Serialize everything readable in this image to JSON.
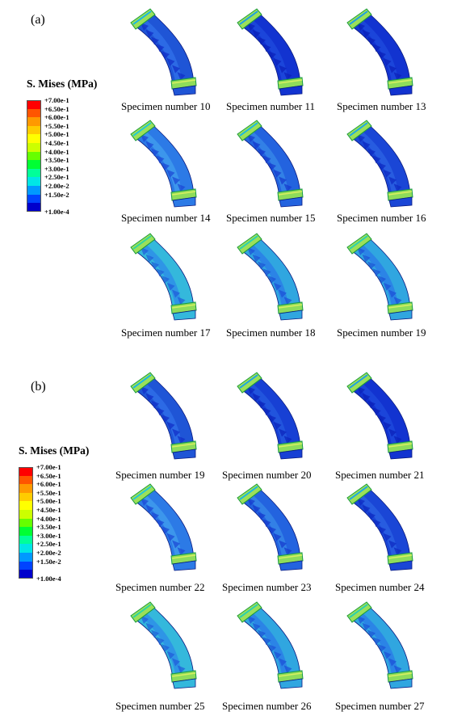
{
  "panels": [
    {
      "label": "(a)",
      "legend_title": "S. Mises (MPa)",
      "legend_ticks": [
        "+7.00e-1",
        "+6.50e-1",
        "+6.00e-1",
        "+5.50e-1",
        "+5.00e-1",
        "+4.50e-1",
        "+4.00e-1",
        "+3.50e-1",
        "+3.00e-1",
        "+2.50e-1",
        "+2.00e-2",
        "+1.50e-2",
        "+1.00e-4"
      ],
      "specimens": [
        {
          "caption": "Specimen number 10",
          "body_color": "#1f55d6",
          "shade_color": "#2f6fe8",
          "pattern_color": "#0f2cc6",
          "edge_color": "#18b6e6"
        },
        {
          "caption": "Specimen number 11",
          "body_color": "#1233d0",
          "shade_color": "#1d49dc",
          "pattern_color": "#0a1fb8",
          "edge_color": "#1c9ee6"
        },
        {
          "caption": "Specimen number 13",
          "body_color": "#1233d0",
          "shade_color": "#1d49dc",
          "pattern_color": "#0a1fb8",
          "edge_color": "#1c9ee6"
        },
        {
          "caption": "Specimen number 14",
          "body_color": "#2c7ae6",
          "shade_color": "#3f9bec",
          "pattern_color": "#1a44d4",
          "edge_color": "#20c8d8"
        },
        {
          "caption": "Specimen number 15",
          "body_color": "#2363df",
          "shade_color": "#3585e8",
          "pattern_color": "#1438cc",
          "edge_color": "#1ab8e0"
        },
        {
          "caption": "Specimen number 16",
          "body_color": "#1a46d6",
          "shade_color": "#2a60e2",
          "pattern_color": "#0d28c0",
          "edge_color": "#1ca8e4"
        },
        {
          "caption": "Specimen number 17",
          "body_color": "#34b8dc",
          "shade_color": "#2e8ee8",
          "pattern_color": "#1f5ad8",
          "edge_color": "#2ed6a0"
        },
        {
          "caption": "Specimen number 18",
          "body_color": "#30a6e0",
          "shade_color": "#2a7ee6",
          "pattern_color": "#1b4ed6",
          "edge_color": "#2ad0b0"
        },
        {
          "caption": "Specimen number 19",
          "body_color": "#30a6e0",
          "shade_color": "#2a7ee6",
          "pattern_color": "#1b4ed6",
          "edge_color": "#2ad0b0"
        }
      ]
    },
    {
      "label": "(b)",
      "legend_title": "S. Mises (MPa)",
      "legend_ticks": [
        "+7.00e-1",
        "+6.50e-1",
        "+6.00e-1",
        "+5.50e-1",
        "+5.00e-1",
        "+4.50e-1",
        "+4.00e-1",
        "+3.50e-1",
        "+3.00e-1",
        "+2.50e-1",
        "+2.00e-2",
        "+1.50e-2",
        "+1.00e-4"
      ],
      "specimens": [
        {
          "caption": "Specimen number 19",
          "body_color": "#1f55d6",
          "shade_color": "#2f6fe8",
          "pattern_color": "#0f2cc6",
          "edge_color": "#18b6e6"
        },
        {
          "caption": "Specimen number 20",
          "body_color": "#1740d4",
          "shade_color": "#2358de",
          "pattern_color": "#0b22ba",
          "edge_color": "#1ca4e4"
        },
        {
          "caption": "Specimen number 21",
          "body_color": "#1233d0",
          "shade_color": "#1d49dc",
          "pattern_color": "#0a1fb8",
          "edge_color": "#1c9ee6"
        },
        {
          "caption": "Specimen number 22",
          "body_color": "#2c7ae6",
          "shade_color": "#3f9bec",
          "pattern_color": "#1a44d4",
          "edge_color": "#20c8d8"
        },
        {
          "caption": "Specimen number 23",
          "body_color": "#2363df",
          "shade_color": "#3585e8",
          "pattern_color": "#1438cc",
          "edge_color": "#1ab8e0"
        },
        {
          "caption": "Specimen number 24",
          "body_color": "#1a46d6",
          "shade_color": "#2a60e2",
          "pattern_color": "#0d28c0",
          "edge_color": "#1ca8e4"
        },
        {
          "caption": "Specimen number 25",
          "body_color": "#34b8dc",
          "shade_color": "#2e8ee8",
          "pattern_color": "#1f5ad8",
          "edge_color": "#2ed6a0"
        },
        {
          "caption": "Specimen number 26",
          "body_color": "#30a6e0",
          "shade_color": "#2a7ee6",
          "pattern_color": "#1b4ed6",
          "edge_color": "#2ad0b0"
        },
        {
          "caption": "Specimen number 27",
          "body_color": "#30a6e0",
          "shade_color": "#2a7ee6",
          "pattern_color": "#1b4ed6",
          "edge_color": "#2ad0b0"
        }
      ]
    }
  ],
  "colorbar_colors": [
    "#ff0000",
    "#ff5500",
    "#ff9900",
    "#ffcc00",
    "#ffff00",
    "#ccff00",
    "#66ff00",
    "#00ff33",
    "#00ff99",
    "#00e6e6",
    "#0099ff",
    "#0044ff",
    "#0000cc"
  ]
}
